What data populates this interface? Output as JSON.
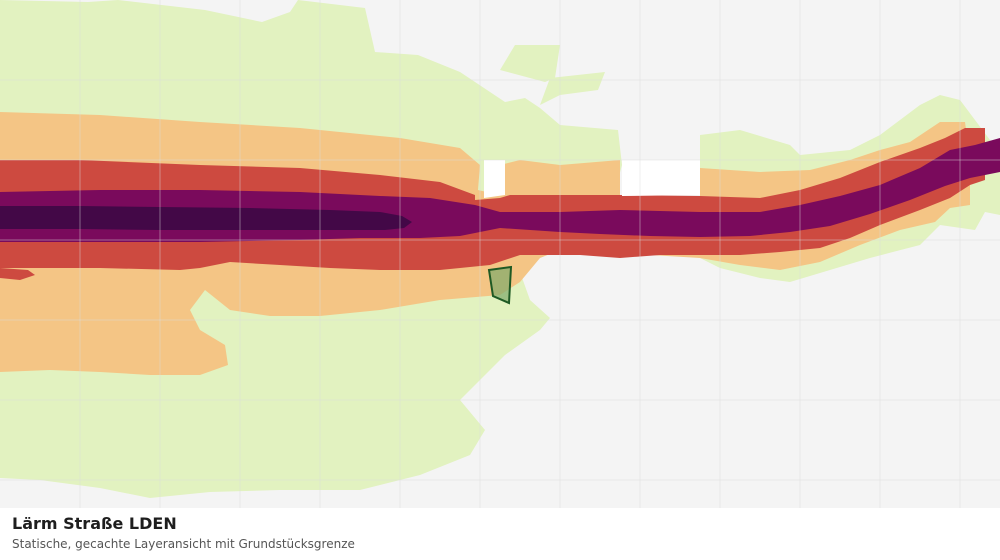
{
  "caption": {
    "title": "Lärm Straße LDEN",
    "subtitle": "Statische, gecachte Layeransicht mit Grundstücksgrenze"
  },
  "map": {
    "layer_colors": {
      "zone_1": "#e2f2c0",
      "zone_2": "#f4c585",
      "zone_3": "#cd4a40",
      "zone_4": "#7a0a5c",
      "zone_5": "#430847"
    },
    "parcel": {
      "fill": "#7faa6a",
      "stroke": "#1f5a24"
    },
    "grid_color": "#dcdcdc",
    "background": "#f4f4f4"
  }
}
